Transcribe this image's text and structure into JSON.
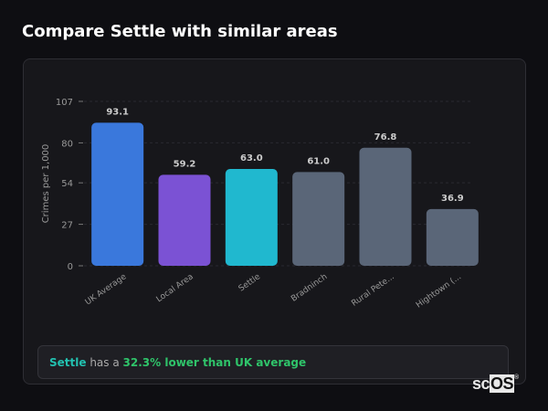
{
  "title": "Compare Settle with similar areas",
  "chart_data": {
    "type": "bar",
    "categories": [
      "UK Average",
      "Local Area",
      "Settle",
      "Bradninch",
      "Rural Pete...",
      "Hightown (..."
    ],
    "values": [
      93.1,
      59.2,
      63.0,
      61.0,
      76.8,
      36.9
    ],
    "value_labels": [
      "93.1",
      "59.2",
      "63.0",
      "61.0",
      "76.8",
      "36.9"
    ],
    "colors": [
      "#3a78dc",
      "#7b52d4",
      "#20b8cf",
      "#5a6678",
      "#5a6678",
      "#5a6678"
    ],
    "ylabel": "Crimes per 1,000",
    "xlabel": "",
    "ylim": [
      0,
      107
    ],
    "yticks": [
      0,
      27,
      54,
      80,
      107
    ],
    "grid": true
  },
  "insight": {
    "area": "Settle",
    "middle": " has a ",
    "highlight": "32.3% lower than UK average"
  },
  "logo": {
    "text_a": "sc",
    "text_b": "OS",
    "mark": "®"
  }
}
